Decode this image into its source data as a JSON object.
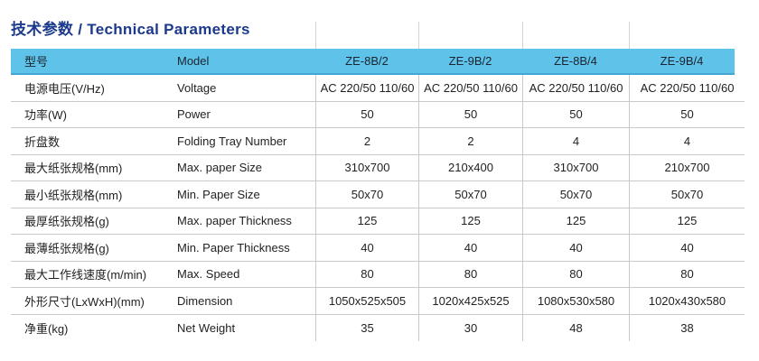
{
  "page": {
    "title": "技术参数 / Technical Parameters"
  },
  "colors": {
    "title_blue": "#1c3a8c",
    "header_band_blue": "#5ec2e9",
    "header_band_border": "#43a6d2",
    "grid_line": "#c9c9c9",
    "text": "#222222"
  },
  "table": {
    "header": {
      "label_cn": "型号",
      "label_en": "Model",
      "models": [
        "ZE-8B/2",
        "ZE-9B/2",
        "ZE-8B/4",
        "ZE-9B/4"
      ]
    },
    "rows": [
      {
        "cn": "电源电压(V/Hz)",
        "en": "Voltage",
        "values": [
          "AC 220/50 110/60",
          "AC 220/50 110/60",
          "AC 220/50 110/60",
          "AC 220/50 110/60"
        ]
      },
      {
        "cn": "功率(W)",
        "en": "Power",
        "values": [
          "50",
          "50",
          "50",
          "50"
        ]
      },
      {
        "cn": "折盘数",
        "en": "Folding Tray Number",
        "values": [
          "2",
          "2",
          "4",
          "4"
        ]
      },
      {
        "cn": "最大纸张规格(mm)",
        "en": "Max. paper Size",
        "values": [
          "310x700",
          "210x400",
          "310x700",
          "210x700"
        ]
      },
      {
        "cn": "最小纸张规格(mm)",
        "en": "Min. Paper Size",
        "values": [
          "50x70",
          "50x70",
          "50x70",
          "50x70"
        ]
      },
      {
        "cn": "最厚纸张规格(g)",
        "en": "Max. paper Thickness",
        "values": [
          "125",
          "125",
          "125",
          "125"
        ]
      },
      {
        "cn": "最薄纸张规格(g)",
        "en": "Min. Paper Thickness",
        "values": [
          "40",
          "40",
          "40",
          "40"
        ]
      },
      {
        "cn": "最大工作线速度(m/min)",
        "en": "Max. Speed",
        "values": [
          "80",
          "80",
          "80",
          "80"
        ]
      },
      {
        "cn": "外形尺寸(LxWxH)(mm)",
        "en": "Dimension",
        "values": [
          "1050x525x505",
          "1020x425x525",
          "1080x530x580",
          "1020x430x580"
        ]
      },
      {
        "cn": "净重(kg)",
        "en": "Net Weight",
        "values": [
          "35",
          "30",
          "48",
          "38"
        ]
      }
    ]
  }
}
